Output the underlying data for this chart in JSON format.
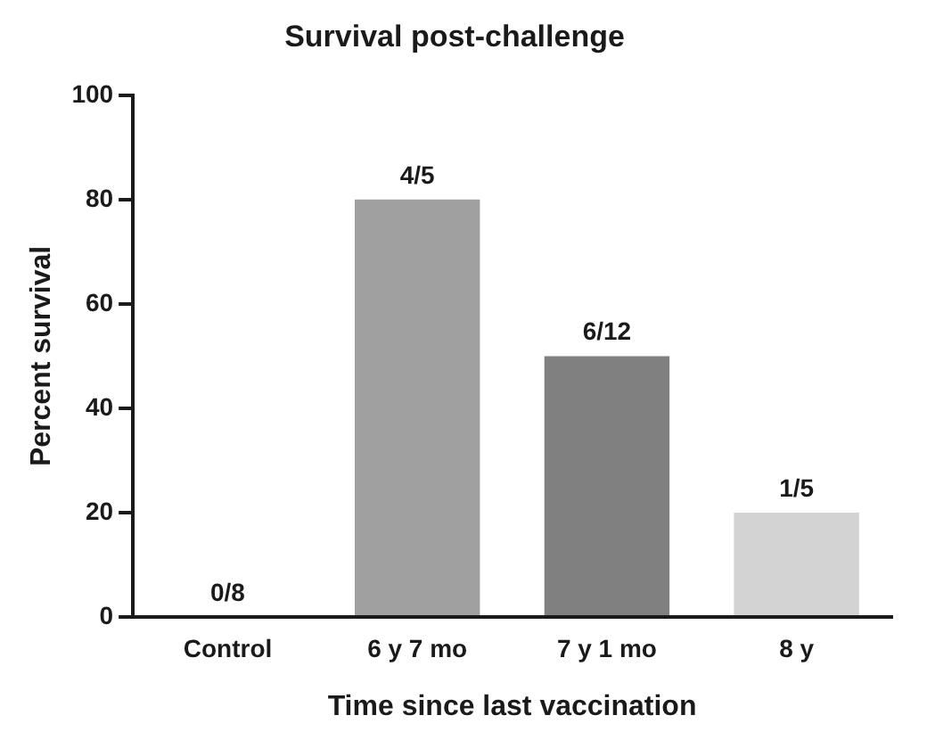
{
  "chart_data": {
    "type": "bar",
    "title": "Survival post-challenge",
    "xlabel": "Time since last vaccination",
    "ylabel": "Percent survival",
    "categories": [
      "Control",
      "6 y 7 mo",
      "7 y 1 mo",
      "8 y"
    ],
    "values": [
      0,
      80,
      50,
      20
    ],
    "colors": [
      "#ffffff",
      "#a0a0a0",
      "#808080",
      "#d3d3d3"
    ],
    "annotations": [
      {
        "text": "0/8",
        "x": "Control",
        "y": 0
      },
      {
        "text": "4/5",
        "x": "6 y 7 mo",
        "y": 80
      },
      {
        "text": "6/12",
        "x": "7 y 1 mo",
        "y": 50
      },
      {
        "text": "1/5",
        "x": "8 y",
        "y": 20
      }
    ],
    "ylim": [
      0,
      100
    ],
    "yticks": [
      0,
      20,
      40,
      60,
      80,
      100
    ],
    "grid": false,
    "legend": false
  }
}
